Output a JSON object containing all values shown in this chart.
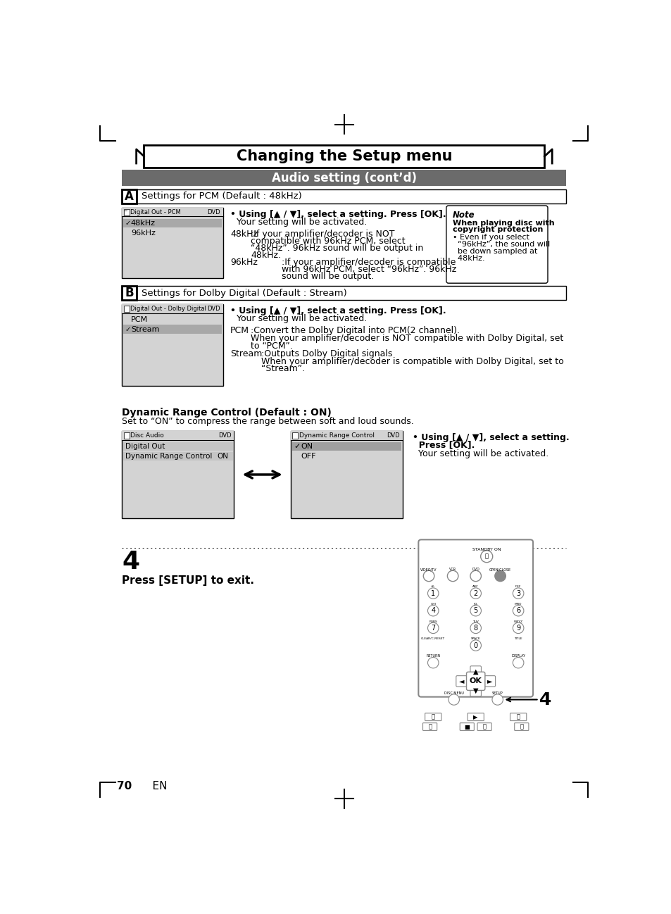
{
  "page_title": "Changing the Setup menu",
  "section_title": "Audio setting (cont’d)",
  "bg_color": "#ffffff",
  "section_bg": "#6b6b6b",
  "section_text_color": "#ffffff",
  "label_a": "A",
  "label_a_text": "Settings for PCM (Default : 48kHz)",
  "label_b": "B",
  "label_b_text": "Settings for Dolby Digital (Default : Stream)",
  "pcm_menu_title": "Digital Out - PCM",
  "pcm_menu_items": [
    "48kHz",
    "96kHz"
  ],
  "pcm_checked": 0,
  "dolby_menu_title": "Digital Out - Dolby Digital",
  "dolby_menu_items": [
    "PCM",
    "Stream"
  ],
  "dolby_checked": 1,
  "disc_menu_title": "Disc Audio",
  "disc_menu_items": [
    "Digital Out",
    "Dynamic Range Control"
  ],
  "dynamic_menu_title": "Dynamic Range Control",
  "dynamic_menu_items": [
    "ON",
    "OFF"
  ],
  "dynamic_checked": 0,
  "footer_num": "4",
  "footer_text": "Press [SETUP] to exit.",
  "page_num": "70",
  "page_lang": "EN",
  "drc_title": "Dynamic Range Control (Default : ON)",
  "drc_sub": "Set to “ON” to compress the range between soft and loud sounds."
}
